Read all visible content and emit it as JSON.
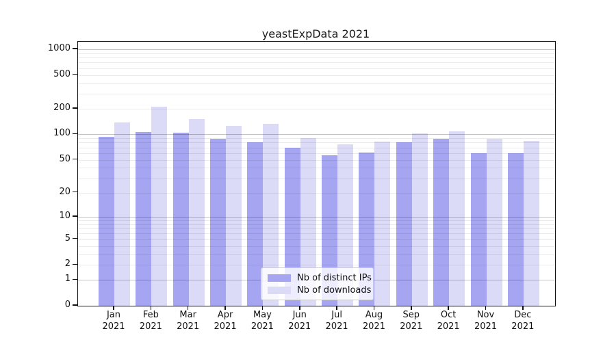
{
  "title": "yeastExpData 2021",
  "chart_data": {
    "type": "bar",
    "title": "yeastExpData 2021",
    "categories": [
      "Jan 2021",
      "Feb 2021",
      "Mar 2021",
      "Apr 2021",
      "May 2021",
      "Jun 2021",
      "Jul 2021",
      "Aug 2021",
      "Sep 2021",
      "Oct 2021",
      "Nov 2021",
      "Dec 2021"
    ],
    "series": [
      {
        "name": "Nb of distinct IPs",
        "color": "#a5a5f2",
        "values": [
          94,
          107,
          105,
          88,
          80,
          69,
          57,
          61,
          80,
          88,
          60,
          60
        ]
      },
      {
        "name": "Nb of downloads",
        "color": "#dbdbf8",
        "values": [
          139,
          213,
          152,
          127,
          134,
          91,
          76,
          82,
          102,
          108,
          89,
          83
        ]
      }
    ],
    "xlabel": "",
    "ylabel": "",
    "y_axis": {
      "scale": "log1p",
      "tick_values": [
        0,
        1,
        2,
        5,
        10,
        20,
        50,
        100,
        200,
        500,
        1000
      ],
      "minor_grid_values": [
        2,
        3,
        4,
        5,
        6,
        7,
        8,
        9,
        20,
        30,
        40,
        50,
        60,
        70,
        80,
        90,
        200,
        300,
        400,
        500,
        600,
        700,
        800,
        900
      ],
      "major_grid_values": [
        1,
        10,
        100,
        1000
      ],
      "top_value": 1224
    },
    "grid": "on",
    "legend_position": "lower center",
    "colors": {
      "grid_major": "#c3c3c3",
      "grid_minor": "#ececec",
      "spine": "#111111",
      "text": "#111111",
      "background": "#ffffff"
    }
  }
}
